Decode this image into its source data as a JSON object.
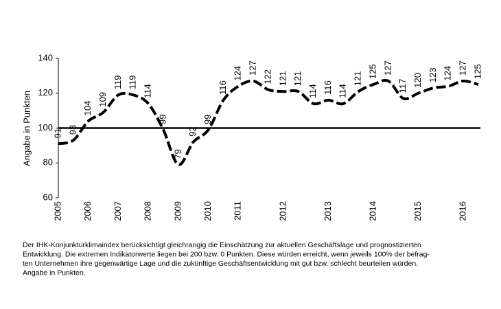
{
  "chart_data": {
    "type": "line",
    "y_label": "Angabe in Punkten",
    "categories": [
      "2005",
      null,
      "2006",
      null,
      "2007",
      null,
      "2008",
      null,
      "2009",
      null,
      "2010",
      null,
      "2011",
      null,
      null,
      "2012",
      null,
      null,
      "2013",
      null,
      null,
      "2014",
      null,
      null,
      "2015",
      null,
      null,
      "2016",
      null
    ],
    "series": [
      {
        "name": "IHK-Konjunkturklimaindex",
        "color": "#000000",
        "values": [
          91,
          93,
          104,
          109,
          119,
          119,
          114,
          99,
          79,
          92,
          99,
          116,
          124,
          127,
          122,
          121,
          121,
          114,
          116,
          114,
          121,
          125,
          127,
          117,
          120,
          123,
          124,
          127,
          125
        ]
      }
    ],
    "ylim": [
      60,
      140
    ],
    "yticks": [
      60,
      80,
      100,
      120,
      140
    ],
    "reference_line": 100,
    "footnote": [
      "Der IHK-Konjunkturklimaindex berücksichtigt gleichrangig die Einschätzung zur aktuellen Geschäftslage und prognostizierten",
      "Entwicklung. Die extremen Indikatorwerte liegen bei 200 bzw. 0 Punkten. Diese würden erreicht, wenn jeweils 100% der befrag-",
      "ten Unternehmen ihre gegenwärtige Lage und die zukünftige Geschäftsentwicklung mit gut bzw. schlecht beurteilen würden.",
      "Angabe in Punkten."
    ]
  }
}
